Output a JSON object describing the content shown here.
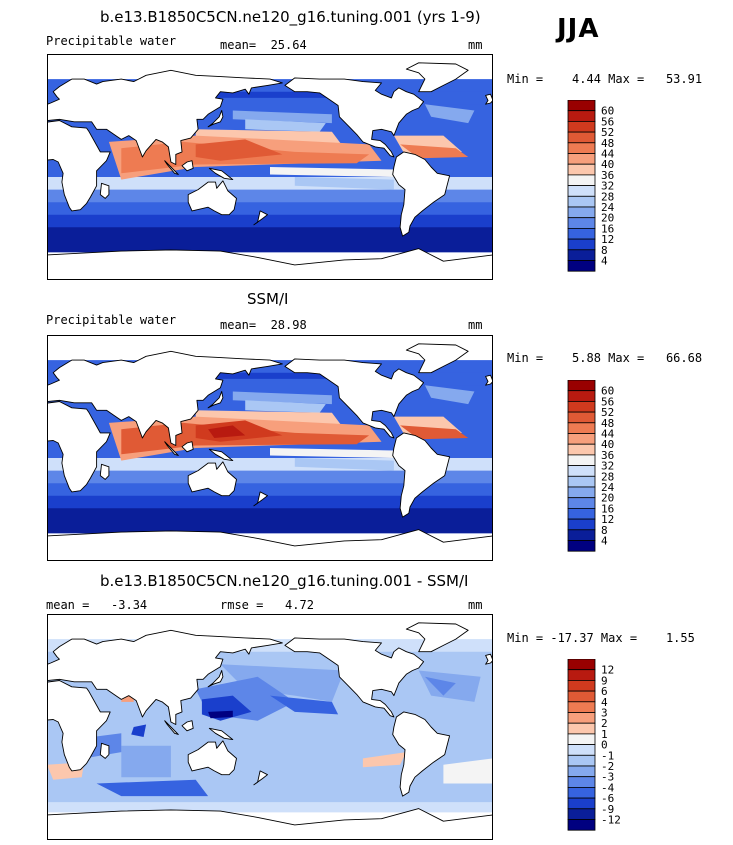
{
  "season": "JJA",
  "panels": [
    {
      "title": "b.e13.B1850C5CN.ne120_g16.tuning.001 (yrs 1-9)",
      "left_label": "Precipitable water",
      "mid_label": "mean=  25.64",
      "units": "mm",
      "stats": "Min =    4.44 Max =   53.91",
      "colorbar_labels": [
        "60",
        "56",
        "52",
        "48",
        "44",
        "40",
        "36",
        "32",
        "28",
        "24",
        "20",
        "16",
        "12",
        "8",
        "4"
      ],
      "palette": "abs",
      "variant": "model"
    },
    {
      "title": "SSM/I",
      "left_label": "Precipitable water",
      "mid_label": "mean=  28.98",
      "units": "mm",
      "stats": "Min =    5.88 Max =   66.68",
      "colorbar_labels": [
        "60",
        "56",
        "52",
        "48",
        "44",
        "40",
        "36",
        "32",
        "28",
        "24",
        "20",
        "16",
        "12",
        "8",
        "4"
      ],
      "palette": "abs",
      "variant": "obs"
    },
    {
      "title": "b.e13.B1850C5CN.ne120_g16.tuning.001 - SSM/I",
      "left_label": "mean =   -3.34",
      "mid_label": "rmse =   4.72",
      "units": "mm",
      "stats": "Min = -17.37 Max =    1.55",
      "colorbar_labels": [
        "12",
        "9",
        "6",
        "4",
        "3",
        "2",
        "1",
        "0",
        "-1",
        "-2",
        "-3",
        "-4",
        "-6",
        "-9",
        "-12"
      ],
      "palette": "diff",
      "variant": "diff"
    }
  ],
  "colors": {
    "abs": [
      "#990000",
      "#b81a10",
      "#d03a1e",
      "#e05a35",
      "#ee7b52",
      "#f79f7c",
      "#fcc7ad",
      "#f4f4f4",
      "#cfe0fa",
      "#aac7f4",
      "#85a9ee",
      "#5d86e8",
      "#3663e0",
      "#1a3fcc",
      "#0a1e99",
      "#000080"
    ],
    "diff": [
      "#990000",
      "#b81a10",
      "#d03a1e",
      "#e05a35",
      "#ee7b52",
      "#f79f7c",
      "#fcc7ad",
      "#f4f4f4",
      "#cfe0fa",
      "#aac7f4",
      "#85a9ee",
      "#5d86e8",
      "#3663e0",
      "#1a3fcc",
      "#0a1e99",
      "#000080"
    ]
  },
  "chart_data": [
    {
      "type": "heatmap",
      "title": "b.e13.B1850C5CN.ne120_g16.tuning.001 (yrs 1-9)",
      "variable": "Precipitable water",
      "units": "mm",
      "mean": 25.64,
      "min": 4.44,
      "max": 53.91,
      "levels": [
        4,
        8,
        12,
        16,
        20,
        24,
        28,
        32,
        36,
        40,
        44,
        48,
        52,
        56,
        60
      ]
    },
    {
      "type": "heatmap",
      "title": "SSM/I",
      "variable": "Precipitable water",
      "units": "mm",
      "mean": 28.98,
      "min": 5.88,
      "max": 66.68,
      "levels": [
        4,
        8,
        12,
        16,
        20,
        24,
        28,
        32,
        36,
        40,
        44,
        48,
        52,
        56,
        60
      ]
    },
    {
      "type": "heatmap",
      "title": "b.e13.B1850C5CN.ne120_g16.tuning.001 - SSM/I",
      "units": "mm",
      "mean": -3.34,
      "rmse": 4.72,
      "min": -17.37,
      "max": 1.55,
      "levels": [
        -12,
        -9,
        -6,
        -4,
        -3,
        -2,
        -1,
        0,
        1,
        2,
        3,
        4,
        6,
        9,
        12
      ]
    }
  ]
}
